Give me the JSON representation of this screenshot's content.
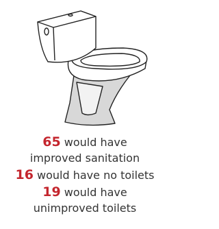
{
  "items": [
    {
      "number": 65,
      "lines": [
        "would have",
        "improved sanitation"
      ]
    },
    {
      "number": 16,
      "lines": [
        "would have no toilets"
      ]
    },
    {
      "number": 19,
      "lines": [
        "would have",
        "unimproved toilets"
      ]
    }
  ]
}
